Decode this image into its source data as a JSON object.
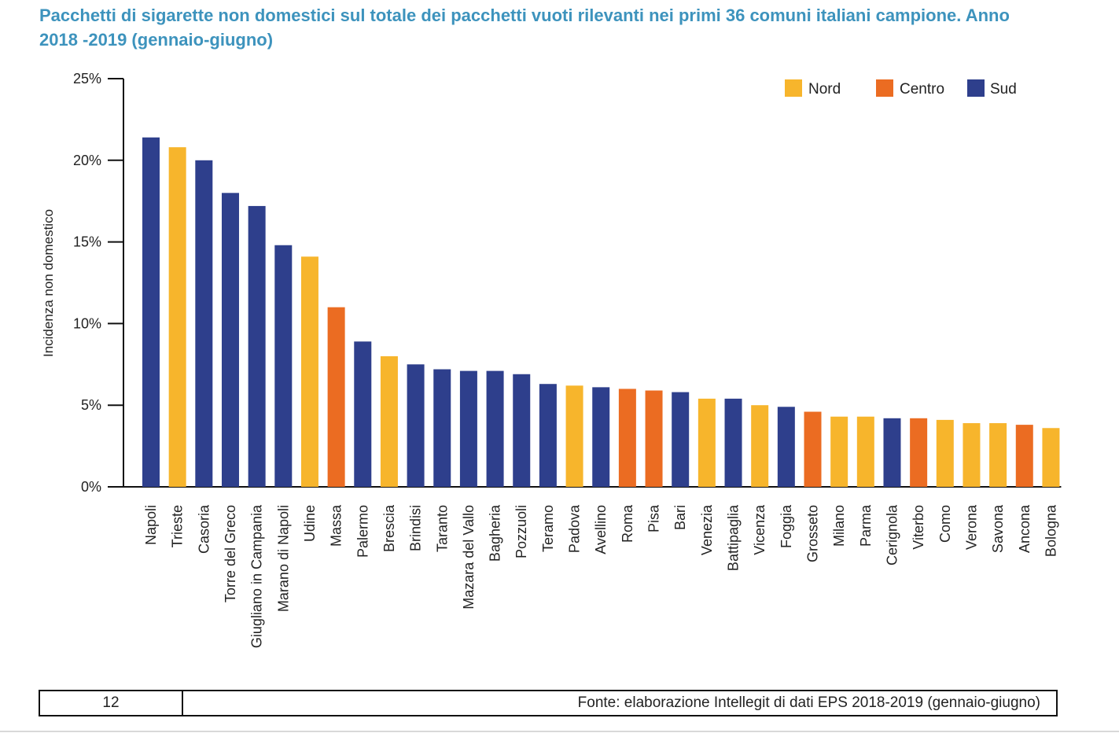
{
  "title_line1": "Pacchetti di sigarette non domestici sul totale dei pacchetti vuoti rilevanti nei primi 36 comuni italiani campione. Anno",
  "title_line2": "2018 -2019 (gennaio-giugno)",
  "colors": {
    "Nord": "#f7b52c",
    "Centro": "#eb6c22",
    "Sud": "#2e3f8c",
    "title": "#3d93bd"
  },
  "footer": {
    "page_number": "12",
    "source": "Fonte: elaborazione Intellegit di dati EPS 2018-2019 (gennaio-giugno)"
  },
  "chart_data": {
    "type": "bar",
    "ylabel": "Incidenza non domestico",
    "ylim": [
      0,
      25
    ],
    "yticks": [
      "0%",
      "5%",
      "10%",
      "15%",
      "20%",
      "25%"
    ],
    "legend": [
      "Nord",
      "Centro",
      "Sud"
    ],
    "legend_position": "top-right",
    "grid": false,
    "categories": [
      "Napoli",
      "Trieste",
      "Casoria",
      "Torre del Greco",
      "Giugliano in Campania",
      "Marano di Napoli",
      "Udine",
      "Massa",
      "Palermo",
      "Brescia",
      "Brindisi",
      "Taranto",
      "Mazara del Vallo",
      "Bagheria",
      "Pozzuoli",
      "Teramo",
      "Padova",
      "Avellino",
      "Roma",
      "Pisa",
      "Bari",
      "Venezia",
      "Battipaglia",
      "Vicenza",
      "Foggia",
      "Grosseto",
      "Milano",
      "Parma",
      "Cerignola",
      "Viterbo",
      "Como",
      "Verona",
      "Savona",
      "Ancona",
      "Bologna"
    ],
    "values": [
      21.4,
      20.8,
      20.0,
      18.0,
      17.2,
      14.8,
      14.1,
      11.0,
      8.9,
      8.0,
      7.5,
      7.2,
      7.1,
      7.1,
      6.9,
      6.3,
      6.2,
      6.1,
      6.0,
      5.9,
      5.8,
      5.4,
      5.4,
      5.0,
      4.9,
      4.6,
      4.3,
      4.3,
      4.2,
      4.2,
      4.1,
      3.9,
      3.9,
      3.8,
      3.6
    ],
    "region": [
      "Sud",
      "Nord",
      "Sud",
      "Sud",
      "Sud",
      "Sud",
      "Nord",
      "Centro",
      "Sud",
      "Nord",
      "Sud",
      "Sud",
      "Sud",
      "Sud",
      "Sud",
      "Sud",
      "Nord",
      "Sud",
      "Centro",
      "Centro",
      "Sud",
      "Nord",
      "Sud",
      "Nord",
      "Sud",
      "Centro",
      "Nord",
      "Nord",
      "Sud",
      "Centro",
      "Nord",
      "Nord",
      "Nord",
      "Centro",
      "Nord"
    ]
  }
}
